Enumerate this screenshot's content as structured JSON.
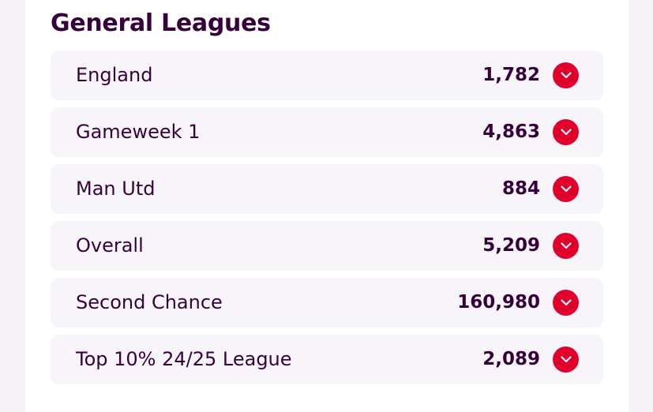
{
  "section": {
    "title": "General Leagues"
  },
  "leagues": [
    {
      "name": "England",
      "rank": "1,782"
    },
    {
      "name": "Gameweek 1",
      "rank": "4,863"
    },
    {
      "name": "Man Utd",
      "rank": "884"
    },
    {
      "name": "Overall",
      "rank": "5,209"
    },
    {
      "name": "Second Chance",
      "rank": "160,980"
    },
    {
      "name": "Top 10% 24/25 League",
      "rank": "2,089"
    }
  ],
  "colors": {
    "heading": "#37003c",
    "accent": "#e0002b",
    "row_bg": "#f7f5f9"
  },
  "icons": {
    "expand": "chevron-down-icon"
  }
}
